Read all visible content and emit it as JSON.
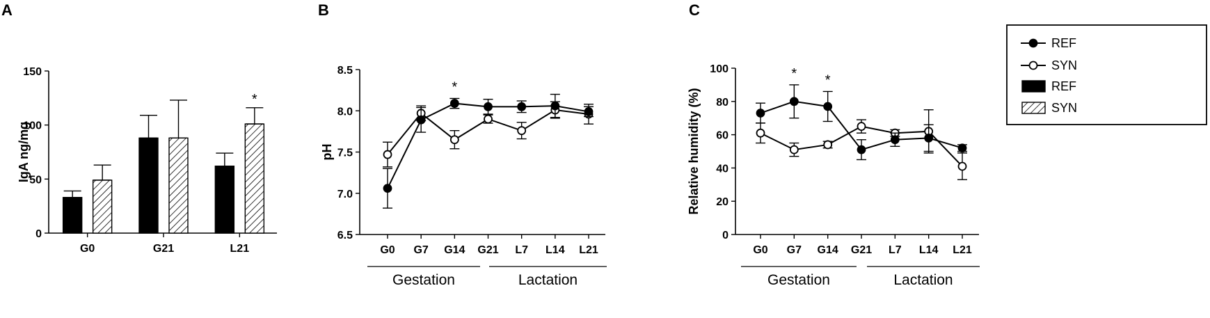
{
  "figure": {
    "legend": {
      "entries": [
        {
          "label": "REF",
          "kind": "line",
          "marker": "filled"
        },
        {
          "label": "SYN",
          "kind": "line",
          "marker": "open"
        },
        {
          "label": "REF",
          "kind": "bar",
          "fill": "solid"
        },
        {
          "label": "SYN",
          "kind": "bar",
          "fill": "hatched"
        }
      ],
      "placement": "right of panel C"
    }
  },
  "chart_data": [
    {
      "panel": "A",
      "type": "bar",
      "ylabel": "IgA ng/mg",
      "categories": [
        "G0",
        "G21",
        "L21"
      ],
      "ylim": [
        0,
        150
      ],
      "yticks": [
        "0",
        "50",
        "100",
        "150"
      ],
      "series": [
        {
          "name": "REF",
          "values": [
            33,
            88,
            62
          ],
          "errors": [
            6,
            21,
            12
          ]
        },
        {
          "name": "SYN",
          "values": [
            49,
            88,
            101
          ],
          "errors": [
            14,
            35,
            15
          ]
        }
      ],
      "annotations": [
        {
          "text": "*",
          "category": "L21",
          "series": "SYN"
        }
      ],
      "grid": false
    },
    {
      "panel": "B",
      "type": "line",
      "ylabel": "pH",
      "categories": [
        "G0",
        "G7",
        "G14",
        "G21",
        "L7",
        "L14",
        "L21"
      ],
      "ylim": [
        6.5,
        8.5
      ],
      "yticks": [
        "6.5",
        "7.0",
        "7.5",
        "8.0",
        "8.5"
      ],
      "series": [
        {
          "name": "REF",
          "values": [
            7.06,
            7.89,
            8.09,
            8.05,
            8.05,
            8.06,
            7.99
          ],
          "errors": [
            0.24,
            0.15,
            0.06,
            0.09,
            0.07,
            0.14,
            0.06
          ]
        },
        {
          "name": "SYN",
          "values": [
            7.47,
            7.97,
            7.65,
            7.9,
            7.76,
            8.01,
            7.96
          ],
          "errors": [
            0.15,
            0.09,
            0.11,
            0.05,
            0.1,
            0.1,
            0.12
          ]
        }
      ],
      "annotations": [
        {
          "text": "*",
          "category": "G14"
        }
      ],
      "groups": [
        {
          "label": "Gestation",
          "from": "G0",
          "to": "G14"
        },
        {
          "label": "Lactation",
          "from": "G21",
          "to": "L21"
        }
      ],
      "grid": false
    },
    {
      "panel": "C",
      "type": "line",
      "ylabel": "Relative humidity (%)",
      "categories": [
        "G0",
        "G7",
        "G14",
        "G21",
        "L7",
        "L14",
        "L21"
      ],
      "ylim": [
        0,
        100
      ],
      "yticks": [
        "0",
        "20",
        "40",
        "60",
        "80",
        "100"
      ],
      "series": [
        {
          "name": "REF",
          "values": [
            73,
            80,
            77,
            51,
            57,
            58,
            52
          ],
          "errors": [
            6,
            10,
            9,
            6,
            4,
            8,
            2
          ]
        },
        {
          "name": "SYN",
          "values": [
            61,
            51,
            54,
            65,
            61,
            62,
            41
          ],
          "errors": [
            6,
            4,
            2,
            4,
            2,
            13,
            8
          ]
        }
      ],
      "annotations": [
        {
          "text": "*",
          "category": "G7"
        },
        {
          "text": "*",
          "category": "G14"
        }
      ],
      "groups": [
        {
          "label": "Gestation",
          "from": "G0",
          "to": "G14"
        },
        {
          "label": "Lactation",
          "from": "G21",
          "to": "L21"
        }
      ],
      "grid": false
    }
  ]
}
